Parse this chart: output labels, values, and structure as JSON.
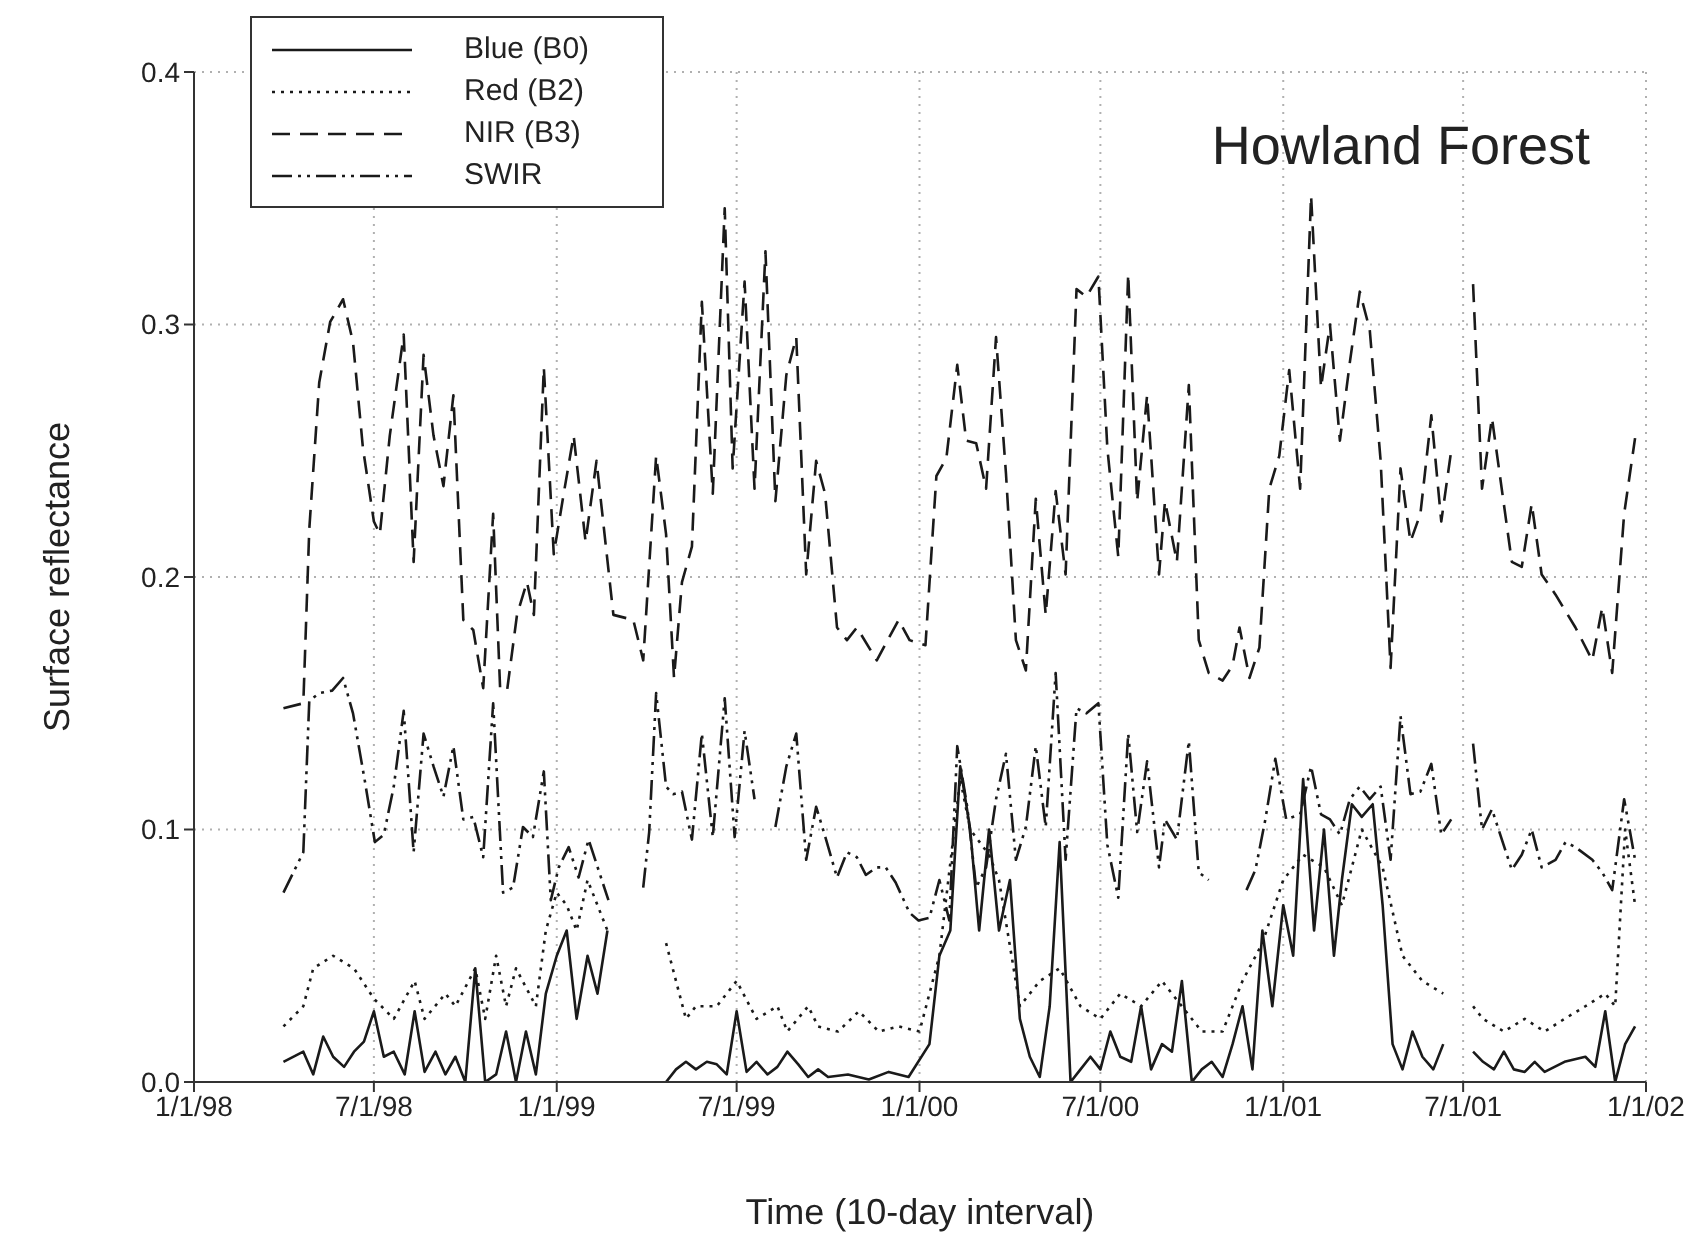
{
  "chart_data": {
    "type": "line",
    "title": "Howland Forest",
    "xlabel": "Time (10-day interval)",
    "ylabel": "Surface reflectance",
    "xlim": [
      "1998-01-01",
      "2002-01-01"
    ],
    "xticks": [
      {
        "value": "1998-01-01",
        "label": "1/1/98"
      },
      {
        "value": "1998-07-01",
        "label": "7/1/98"
      },
      {
        "value": "1999-01-01",
        "label": "1/1/99"
      },
      {
        "value": "1999-07-01",
        "label": "7/1/99"
      },
      {
        "value": "2000-01-01",
        "label": "1/1/00"
      },
      {
        "value": "2000-07-01",
        "label": "7/1/00"
      },
      {
        "value": "2001-01-01",
        "label": "1/1/01"
      },
      {
        "value": "2001-07-01",
        "label": "7/1/01"
      },
      {
        "value": "2002-01-01",
        "label": "1/1/02"
      }
    ],
    "ylim": [
      0,
      0.4
    ],
    "yticks": [
      {
        "value": 0,
        "label": "0.0"
      },
      {
        "value": 0.1,
        "label": "0.1"
      },
      {
        "value": 0.2,
        "label": "0.2"
      },
      {
        "value": 0.3,
        "label": "0.3"
      },
      {
        "value": 0.4,
        "label": "0.4"
      }
    ],
    "grid": true,
    "legend": "top left",
    "marker": "none",
    "series": [
      {
        "name": "Blue (B0)",
        "color": "#1a1a1a",
        "line_style": "solid",
        "x": [
          "1998-04-01",
          "1998-04-21",
          "1998-05-01",
          "1998-05-11",
          "1998-05-21",
          "1998-06-01",
          "1998-06-11",
          "1998-06-21",
          "1998-07-01",
          "1998-07-11",
          "1998-07-21",
          "1998-08-01",
          "1998-08-11",
          "1998-08-21",
          "1998-09-01",
          "1998-09-11",
          "1998-09-21",
          "1998-10-01",
          "1998-10-11",
          "1998-10-21",
          "1998-11-01",
          "1998-11-11",
          "1998-11-21",
          "1998-12-01",
          "1998-12-11",
          "1998-12-21",
          "1999-01-01",
          "1999-01-11",
          "1999-01-21",
          "1999-02-01",
          "1999-02-11",
          "1999-02-21",
          "1999-03-05",
          "1999-04-21",
          "1999-05-01",
          "1999-05-11",
          "1999-05-21",
          "1999-06-01",
          "1999-06-11",
          "1999-06-21",
          "1999-07-01",
          "1999-07-11",
          "1999-07-21",
          "1999-08-01",
          "1999-08-11",
          "1999-08-21",
          "1999-09-01",
          "1999-09-11",
          "1999-09-21",
          "1999-10-01",
          "1999-10-21",
          "1999-11-11",
          "1999-12-01",
          "1999-12-21",
          "2000-01-11",
          "2000-01-21",
          "2000-02-01",
          "2000-02-11",
          "2000-02-21",
          "2000-03-01",
          "2000-03-11",
          "2000-03-21",
          "2000-04-01",
          "2000-04-11",
          "2000-04-21",
          "2000-05-01",
          "2000-05-11",
          "2000-05-21",
          "2000-06-01",
          "2000-06-11",
          "2000-06-21",
          "2000-07-01",
          "2000-07-11",
          "2000-07-21",
          "2000-08-01",
          "2000-08-11",
          "2000-08-21",
          "2000-09-01",
          "2000-09-11",
          "2000-09-21",
          "2000-10-01",
          "2000-10-11",
          "2000-10-21",
          "2000-11-01",
          "2000-11-11",
          "2000-11-21",
          "2000-12-01",
          "2000-12-11",
          "2000-12-21",
          "2001-01-01",
          "2001-01-11",
          "2001-01-21",
          "2001-02-01",
          "2001-02-11",
          "2001-02-21",
          "2001-03-01",
          "2001-03-11",
          "2001-03-21",
          "2001-04-01",
          "2001-04-11",
          "2001-04-21",
          "2001-05-01",
          "2001-05-11",
          "2001-05-21",
          "2001-06-01",
          "2001-06-11",
          "2001-06-30",
          "2001-07-11",
          "2001-07-21",
          "2001-08-01",
          "2001-08-11",
          "2001-08-21",
          "2001-09-01",
          "2001-09-11",
          "2001-09-21",
          "2001-10-11",
          "2001-11-01",
          "2001-11-11",
          "2001-11-21",
          "2001-12-01",
          "2001-12-11",
          "2001-12-21"
        ],
        "values": [
          0.008,
          0.012,
          0.003,
          0.018,
          0.01,
          0.006,
          0.012,
          0.016,
          0.028,
          0.01,
          0.012,
          0.003,
          0.028,
          0.004,
          0.012,
          0.003,
          0.01,
          0.0,
          0.045,
          0.0,
          0.003,
          0.02,
          0.0,
          0.02,
          0.003,
          0.035,
          0.05,
          0.06,
          0.025,
          0.05,
          0.035,
          0.06,
          null,
          0.0,
          0.005,
          0.008,
          0.005,
          0.008,
          0.007,
          0.003,
          0.028,
          0.004,
          0.008,
          0.003,
          0.006,
          0.012,
          0.007,
          0.002,
          0.005,
          0.002,
          0.003,
          0.001,
          0.004,
          0.002,
          0.015,
          0.05,
          0.06,
          0.125,
          0.1,
          0.06,
          0.1,
          0.06,
          0.08,
          0.025,
          0.01,
          0.002,
          0.03,
          0.095,
          0.0,
          0.005,
          0.01,
          0.005,
          0.02,
          0.01,
          0.008,
          0.03,
          0.005,
          0.015,
          0.012,
          0.04,
          0.0,
          0.005,
          0.008,
          0.002,
          0.015,
          0.03,
          0.005,
          0.06,
          0.03,
          0.07,
          0.05,
          0.12,
          0.06,
          0.1,
          0.05,
          0.08,
          0.11,
          0.105,
          0.11,
          0.07,
          0.015,
          0.005,
          0.02,
          0.01,
          0.005,
          0.015,
          null,
          0.012,
          0.008,
          0.005,
          0.012,
          0.005,
          0.004,
          0.008,
          0.004,
          0.008,
          0.01,
          0.006,
          0.028,
          0.0,
          0.015,
          0.022
        ]
      },
      {
        "name": "Red (B2)",
        "color": "#1a1a1a",
        "line_style": "dotted",
        "x": [
          "1998-04-01",
          "1998-04-21",
          "1998-05-01",
          "1998-05-21",
          "1998-06-11",
          "1998-07-01",
          "1998-07-21",
          "1998-08-11",
          "1998-08-21",
          "1998-09-11",
          "1998-09-21",
          "1998-10-11",
          "1998-10-21",
          "1998-11-01",
          "1998-11-11",
          "1998-11-21",
          "1998-12-11",
          "1998-12-21",
          "1999-01-01",
          "1999-01-11",
          "1999-01-21",
          "1999-02-01",
          "1999-02-11",
          "1999-02-21",
          "1999-03-05",
          "1999-04-21",
          "1999-05-01",
          "1999-05-11",
          "1999-05-21",
          "1999-06-11",
          "1999-07-01",
          "1999-07-21",
          "1999-08-11",
          "1999-08-21",
          "1999-09-11",
          "1999-09-21",
          "1999-10-11",
          "1999-11-01",
          "1999-11-21",
          "1999-12-11",
          "2000-01-01",
          "2000-01-21",
          "2000-02-11",
          "2000-02-21",
          "2000-03-11",
          "2000-03-21",
          "2000-04-11",
          "2000-05-01",
          "2000-05-21",
          "2000-06-11",
          "2000-07-01",
          "2000-07-21",
          "2000-08-11",
          "2000-09-01",
          "2000-09-21",
          "2000-10-11",
          "2000-11-01",
          "2000-11-21",
          "2000-12-11",
          "2001-01-01",
          "2001-01-21",
          "2001-02-11",
          "2001-03-01",
          "2001-03-21",
          "2001-04-11",
          "2001-05-01",
          "2001-05-21",
          "2001-06-11",
          "2001-06-30",
          "2001-07-11",
          "2001-07-21",
          "2001-08-11",
          "2001-09-01",
          "2001-09-21",
          "2001-10-11",
          "2001-11-01",
          "2001-11-21",
          "2001-12-01",
          "2001-12-11",
          "2001-12-21"
        ],
        "values": [
          0.022,
          0.03,
          0.045,
          0.05,
          0.045,
          0.033,
          0.025,
          0.04,
          0.025,
          0.035,
          0.03,
          0.045,
          0.025,
          0.05,
          0.03,
          0.045,
          0.03,
          0.06,
          0.075,
          0.07,
          0.06,
          0.08,
          0.07,
          0.06,
          null,
          0.055,
          0.04,
          0.025,
          0.03,
          0.03,
          0.04,
          0.025,
          0.03,
          0.02,
          0.03,
          0.022,
          0.02,
          0.028,
          0.02,
          0.022,
          0.02,
          0.05,
          0.12,
          0.1,
          0.09,
          0.08,
          0.03,
          0.04,
          0.045,
          0.03,
          0.025,
          0.035,
          0.03,
          0.04,
          0.03,
          0.02,
          0.02,
          0.04,
          0.055,
          0.08,
          0.09,
          0.085,
          0.07,
          0.1,
          0.085,
          0.05,
          0.04,
          0.035,
          null,
          0.03,
          0.025,
          0.02,
          0.025,
          0.02,
          0.025,
          0.03,
          0.035,
          0.03,
          0.1,
          0.07
        ]
      },
      {
        "name": "NIR (B3)",
        "color": "#1a1a1a",
        "line_style": "dashed",
        "x": [
          "1998-04-01",
          "1998-04-21",
          "1998-04-27",
          "1998-05-07",
          "1998-05-18",
          "1998-05-31",
          "1998-06-10",
          "1998-06-20",
          "1998-07-01",
          "1998-07-07",
          "1998-07-17",
          "1998-07-31",
          "1998-08-10",
          "1998-08-20",
          "1998-08-30",
          "1998-09-09",
          "1998-09-19",
          "1998-09-29",
          "1998-10-09",
          "1998-10-19",
          "1998-10-29",
          "1998-11-05",
          "1998-11-12",
          "1998-11-22",
          "1998-12-02",
          "1998-12-09",
          "1998-12-19",
          "1998-12-29",
          "1999-01-08",
          "1999-01-18",
          "1999-01-30",
          "1999-02-10",
          "1999-02-27",
          "1999-03-19",
          "1999-03-29",
          "1999-04-11",
          "1999-04-21",
          "1999-04-29",
          "1999-05-07",
          "1999-05-17",
          "1999-05-27",
          "1999-06-07",
          "1999-06-19",
          "1999-06-27",
          "1999-07-09",
          "1999-07-19",
          "1999-07-30",
          "1999-08-09",
          "1999-08-20",
          "1999-08-30",
          "1999-09-09",
          "1999-09-19",
          "1999-09-28",
          "1999-10-10",
          "1999-10-20",
          "1999-10-30",
          "1999-11-19",
          "1999-12-11",
          "1999-12-22",
          "2000-01-07",
          "2000-01-18",
          "2000-01-28",
          "2000-02-08",
          "2000-02-17",
          "2000-02-27",
          "2000-03-08",
          "2000-03-18",
          "2000-03-28",
          "2000-04-07",
          "2000-04-17",
          "2000-04-27",
          "2000-05-07",
          "2000-05-17",
          "2000-05-27",
          "2000-06-07",
          "2000-06-17",
          "2000-06-29",
          "2000-07-08",
          "2000-07-19",
          "2000-07-29",
          "2000-08-07",
          "2000-08-17",
          "2000-08-29",
          "2000-09-04",
          "2000-09-16",
          "2000-09-28",
          "2000-10-08",
          "2000-10-18",
          "2000-11-01",
          "2000-11-11",
          "2000-11-18",
          "2000-11-28",
          "2000-12-08",
          "2000-12-18",
          "2000-12-28",
          "2001-01-07",
          "2001-01-18",
          "2001-01-29",
          "2001-02-08",
          "2001-02-17",
          "2001-02-27",
          "2001-03-09",
          "2001-03-19",
          "2001-03-29",
          "2001-04-09",
          "2001-04-19",
          "2001-04-29",
          "2001-05-09",
          "2001-05-19",
          "2001-05-30",
          "2001-06-09",
          "2001-06-19",
          "2001-06-30",
          "2001-07-11",
          "2001-07-20",
          "2001-07-30",
          "2001-08-19",
          "2001-08-29",
          "2001-09-08",
          "2001-09-18",
          "2001-10-02",
          "2001-10-22",
          "2001-11-08",
          "2001-11-18",
          "2001-11-28",
          "2001-12-10",
          "2001-12-21"
        ],
        "values": [
          0.148,
          0.15,
          0.219,
          0.277,
          0.301,
          0.31,
          0.293,
          0.251,
          0.222,
          0.217,
          0.256,
          0.296,
          0.206,
          0.288,
          0.256,
          0.236,
          0.272,
          0.183,
          0.179,
          0.156,
          0.225,
          0.156,
          0.155,
          0.185,
          0.198,
          0.185,
          0.283,
          0.209,
          0.233,
          0.256,
          0.214,
          0.246,
          0.185,
          0.183,
          0.167,
          0.248,
          0.217,
          0.16,
          0.198,
          0.212,
          0.309,
          0.233,
          0.346,
          0.243,
          0.317,
          0.235,
          0.329,
          0.23,
          0.28,
          0.295,
          0.201,
          0.246,
          0.233,
          0.18,
          0.175,
          0.18,
          0.167,
          0.183,
          0.175,
          0.173,
          0.24,
          0.247,
          0.284,
          0.254,
          0.253,
          0.235,
          0.295,
          0.241,
          0.175,
          0.163,
          0.231,
          0.185,
          0.234,
          0.201,
          0.314,
          0.311,
          0.319,
          0.251,
          0.208,
          0.32,
          0.23,
          0.272,
          0.201,
          0.23,
          0.206,
          0.276,
          0.175,
          0.162,
          0.159,
          0.165,
          0.18,
          0.16,
          0.172,
          0.235,
          0.248,
          0.282,
          0.235,
          0.351,
          0.275,
          0.3,
          0.254,
          0.285,
          0.313,
          0.298,
          0.246,
          0.164,
          0.243,
          0.214,
          0.225,
          0.264,
          0.222,
          0.25,
          null,
          0.316,
          0.235,
          0.263,
          0.206,
          0.204,
          0.229,
          0.201,
          0.193,
          0.18,
          0.167,
          0.188,
          0.162,
          0.225,
          0.255
        ]
      },
      {
        "name": "SWIR",
        "color": "#1a1a1a",
        "line_style": "dashdot",
        "x": [
          "1998-04-01",
          "1998-04-21",
          "1998-04-27",
          "1998-05-07",
          "1998-05-20",
          "1998-05-31",
          "1998-06-10",
          "1998-06-22",
          "1998-07-02",
          "1998-07-11",
          "1998-07-21",
          "1998-07-31",
          "1998-08-10",
          "1998-08-20",
          "1998-08-30",
          "1998-09-09",
          "1998-09-19",
          "1998-09-29",
          "1998-10-09",
          "1998-10-19",
          "1998-10-29",
          "1998-11-08",
          "1998-11-18",
          "1998-11-28",
          "1998-12-08",
          "1998-12-19",
          "1998-12-26",
          "1999-01-03",
          "1999-01-13",
          "1999-01-23",
          "1999-02-02",
          "1999-02-12",
          "1999-02-22",
          "1999-03-10",
          "1999-03-29",
          "1999-04-04",
          "1999-04-11",
          "1999-04-21",
          "1999-04-28",
          "1999-05-07",
          "1999-05-17",
          "1999-05-27",
          "1999-06-07",
          "1999-06-19",
          "1999-06-29",
          "1999-07-09",
          "1999-07-19",
          "1999-07-25",
          "1999-08-09",
          "1999-08-20",
          "1999-08-30",
          "1999-09-09",
          "1999-09-19",
          "1999-09-29",
          "1999-10-10",
          "1999-10-20",
          "1999-10-30",
          "1999-11-08",
          "1999-11-19",
          "1999-11-28",
          "1999-12-08",
          "1999-12-22",
          "1999-12-31",
          "2000-01-11",
          "2000-01-21",
          "2000-01-31",
          "2000-02-08",
          "2000-02-18",
          "2000-02-27",
          "2000-03-08",
          "2000-03-18",
          "2000-03-28",
          "2000-04-07",
          "2000-04-17",
          "2000-04-27",
          "2000-05-07",
          "2000-05-17",
          "2000-05-27",
          "2000-06-07",
          "2000-06-17",
          "2000-06-29",
          "2000-07-08",
          "2000-07-19",
          "2000-07-29",
          "2000-08-07",
          "2000-08-17",
          "2000-08-29",
          "2000-09-04",
          "2000-09-16",
          "2000-09-28",
          "2000-10-08",
          "2000-10-18",
          "2000-10-28",
          "2000-11-25",
          "2000-12-04",
          "2000-12-14",
          "2000-12-24",
          "2001-01-04",
          "2001-01-18",
          "2001-01-29",
          "2001-02-08",
          "2001-02-17",
          "2001-02-27",
          "2001-03-09",
          "2001-03-19",
          "2001-03-29",
          "2001-04-09",
          "2001-04-19",
          "2001-04-29",
          "2001-05-09",
          "2001-05-19",
          "2001-05-30",
          "2001-06-09",
          "2001-06-19",
          "2001-06-30",
          "2001-07-11",
          "2001-07-20",
          "2001-07-30",
          "2001-08-19",
          "2001-08-29",
          "2001-09-08",
          "2001-09-18",
          "2001-10-02",
          "2001-10-12",
          "2001-10-22",
          "2001-11-08",
          "2001-11-18",
          "2001-11-28",
          "2001-12-10",
          "2001-12-21"
        ],
        "values": [
          0.075,
          0.091,
          0.151,
          0.154,
          0.155,
          0.16,
          0.146,
          0.119,
          0.095,
          0.098,
          0.117,
          0.147,
          0.091,
          0.138,
          0.125,
          0.113,
          0.133,
          0.104,
          0.105,
          0.089,
          0.15,
          0.075,
          0.077,
          0.101,
          0.097,
          0.123,
          0.072,
          0.085,
          0.093,
          0.081,
          0.096,
          0.084,
          0.072,
          null,
          0.077,
          0.099,
          0.154,
          0.117,
          0.114,
          0.115,
          0.096,
          0.138,
          0.097,
          0.152,
          0.097,
          0.139,
          0.112,
          null,
          0.101,
          0.125,
          0.138,
          0.088,
          0.109,
          0.096,
          0.081,
          0.091,
          0.089,
          0.082,
          0.085,
          0.085,
          0.079,
          0.067,
          0.064,
          0.065,
          0.08,
          0.064,
          0.133,
          0.109,
          0.077,
          0.085,
          0.112,
          0.13,
          0.088,
          0.101,
          0.133,
          0.101,
          0.162,
          0.088,
          0.148,
          0.146,
          0.15,
          0.094,
          0.073,
          0.138,
          0.099,
          0.127,
          0.085,
          0.104,
          0.096,
          0.135,
          0.083,
          0.08,
          null,
          0.076,
          0.084,
          0.104,
          0.128,
          0.104,
          0.106,
          0.125,
          0.106,
          0.104,
          0.098,
          0.112,
          0.117,
          0.112,
          0.117,
          0.088,
          0.145,
          0.114,
          0.115,
          0.126,
          0.098,
          0.104,
          null,
          0.134,
          0.1,
          0.108,
          0.084,
          0.09,
          0.1,
          0.085,
          0.088,
          0.095,
          0.093,
          0.088,
          0.083,
          0.076,
          0.112,
          0.088
        ]
      }
    ]
  }
}
